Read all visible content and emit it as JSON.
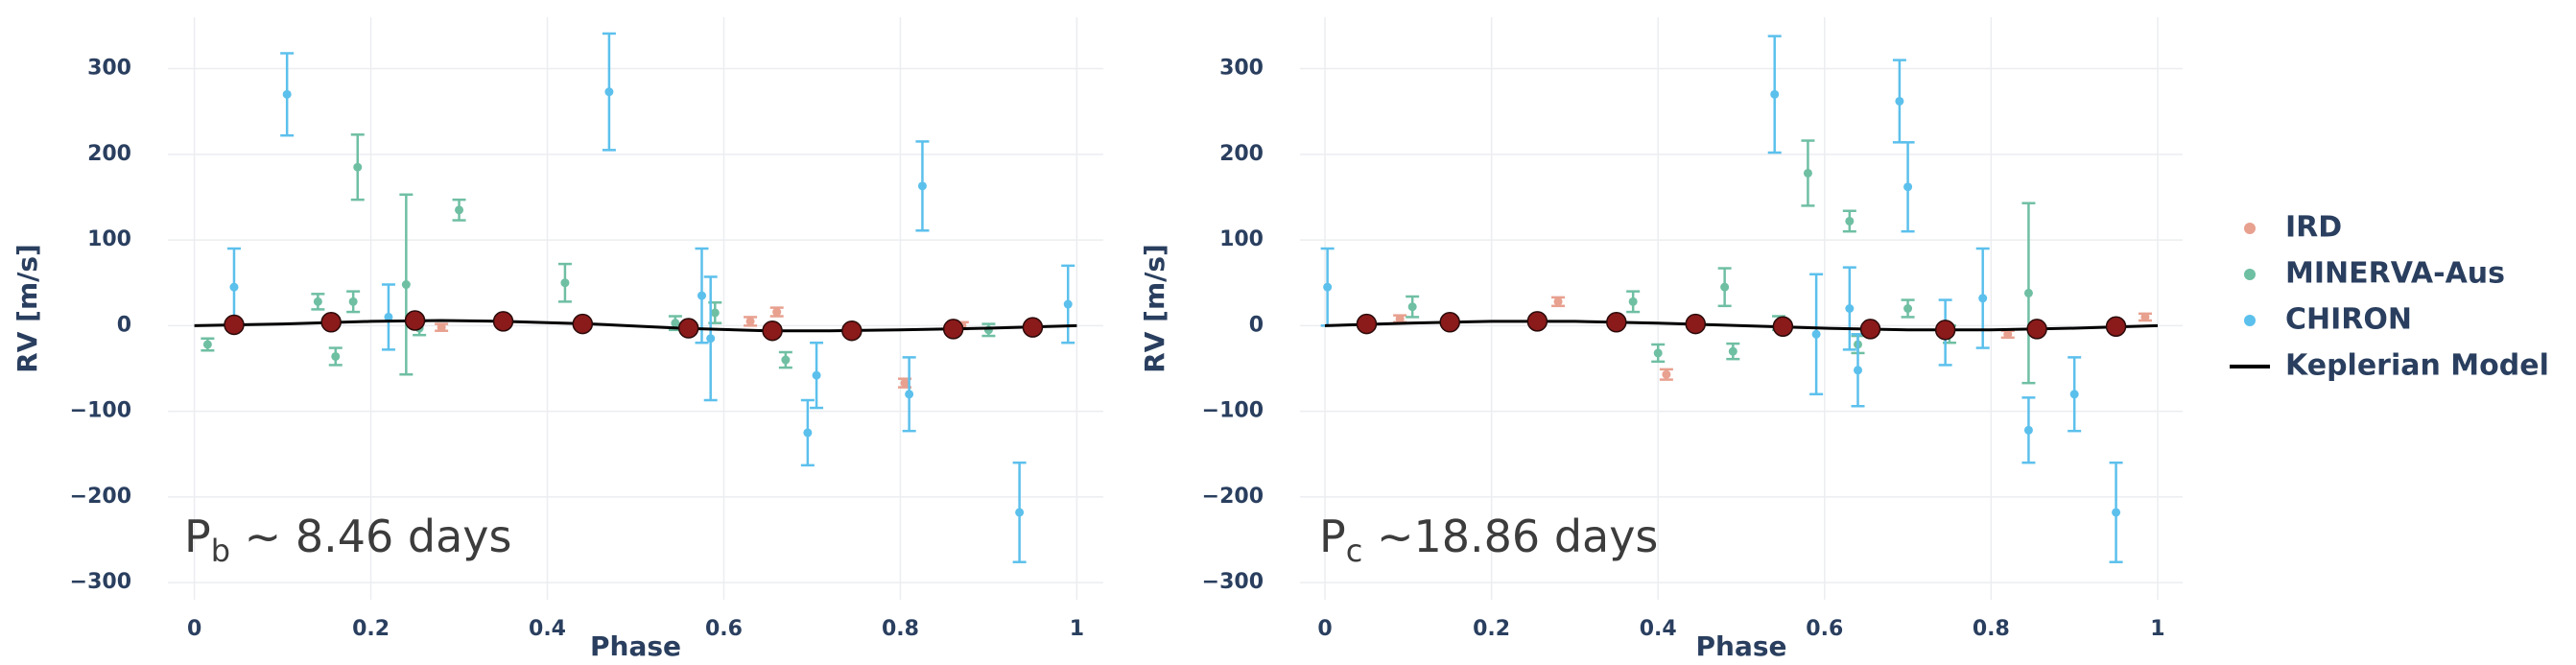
{
  "colors": {
    "IRD": "#e8a08f",
    "MINERVA-Aus": "#6fbfa3",
    "CHIRON": "#5cc0ec",
    "model_line": "#000000",
    "model_marker": "#8b1a1a",
    "grid": "#ebedf0",
    "text": "#2a3f5f"
  },
  "legend": {
    "items": [
      {
        "label": "IRD",
        "key": "IRD",
        "kind": "marker"
      },
      {
        "label": "MINERVA-Aus",
        "key": "MINERVA-Aus",
        "kind": "marker"
      },
      {
        "label": "CHIRON",
        "key": "CHIRON",
        "kind": "marker"
      },
      {
        "label": "Keplerian Model",
        "key": "model_line",
        "kind": "line"
      }
    ]
  },
  "chart_data": [
    {
      "type": "scatter",
      "panel": "b",
      "annotation": {
        "main": "P",
        "sub": "b",
        "rest": " ~ 8.46 days"
      },
      "xlabel": "Phase",
      "ylabel": "RV [m/s]",
      "xlim": [
        -0.03,
        1.03
      ],
      "ylim": [
        -320,
        360
      ],
      "xticks": [
        "0",
        "0.2",
        "0.4",
        "0.6",
        "0.8",
        "1"
      ],
      "xtick_values": [
        0,
        0.2,
        0.4,
        0.6,
        0.8,
        1
      ],
      "yticks": [
        "300",
        "200",
        "100",
        "0",
        "−100",
        "−200",
        "−300"
      ],
      "ytick_values": [
        300,
        200,
        100,
        0,
        -100,
        -200,
        -300
      ],
      "grid": true,
      "series": [
        {
          "name": "IRD",
          "points": [
            {
              "x": 0.28,
              "y": -2,
              "err": 4
            },
            {
              "x": 0.63,
              "y": 5,
              "err": 5
            },
            {
              "x": 0.66,
              "y": 16,
              "err": 5
            },
            {
              "x": 0.805,
              "y": -67,
              "err": 5
            },
            {
              "x": 0.87,
              "y": 0,
              "err": 4
            }
          ]
        },
        {
          "name": "MINERVA-Aus",
          "points": [
            {
              "x": 0.015,
              "y": -22,
              "err": 7
            },
            {
              "x": 0.14,
              "y": 28,
              "err": 9
            },
            {
              "x": 0.16,
              "y": -36,
              "err": 10
            },
            {
              "x": 0.18,
              "y": 28,
              "err": 12
            },
            {
              "x": 0.185,
              "y": 185,
              "err": 38
            },
            {
              "x": 0.24,
              "y": 48,
              "err": 105
            },
            {
              "x": 0.255,
              "y": -3,
              "err": 8
            },
            {
              "x": 0.3,
              "y": 135,
              "err": 12
            },
            {
              "x": 0.42,
              "y": 50,
              "err": 22
            },
            {
              "x": 0.545,
              "y": 3,
              "err": 8
            },
            {
              "x": 0.59,
              "y": 15,
              "err": 12
            },
            {
              "x": 0.67,
              "y": -40,
              "err": 9
            },
            {
              "x": 0.9,
              "y": -5,
              "err": 7
            }
          ]
        },
        {
          "name": "CHIRON",
          "points": [
            {
              "x": 0.045,
              "y": 45,
              "err": 45
            },
            {
              "x": 0.105,
              "y": 270,
              "err": 48
            },
            {
              "x": 0.22,
              "y": 10,
              "err": 38
            },
            {
              "x": 0.47,
              "y": 273,
              "err": 68
            },
            {
              "x": 0.575,
              "y": 35,
              "err": 55
            },
            {
              "x": 0.585,
              "y": -15,
              "err": 72
            },
            {
              "x": 0.695,
              "y": -125,
              "err": 38
            },
            {
              "x": 0.705,
              "y": -58,
              "err": 38
            },
            {
              "x": 0.81,
              "y": -80,
              "err": 43
            },
            {
              "x": 0.825,
              "y": 163,
              "err": 52
            },
            {
              "x": 0.935,
              "y": -218,
              "err": 58
            },
            {
              "x": 0.99,
              "y": 25,
              "err": 45
            }
          ]
        },
        {
          "name": "Keplerian Model",
          "line": [
            {
              "x": 0.0,
              "y": 0
            },
            {
              "x": 0.1,
              "y": 2
            },
            {
              "x": 0.2,
              "y": 5
            },
            {
              "x": 0.28,
              "y": 6
            },
            {
              "x": 0.35,
              "y": 5
            },
            {
              "x": 0.45,
              "y": 2
            },
            {
              "x": 0.55,
              "y": -3
            },
            {
              "x": 0.65,
              "y": -6
            },
            {
              "x": 0.72,
              "y": -6
            },
            {
              "x": 0.8,
              "y": -5
            },
            {
              "x": 0.9,
              "y": -3
            },
            {
              "x": 1.0,
              "y": 0
            }
          ],
          "markers": [
            {
              "x": 0.045,
              "y": 1
            },
            {
              "x": 0.155,
              "y": 4
            },
            {
              "x": 0.25,
              "y": 6
            },
            {
              "x": 0.35,
              "y": 5
            },
            {
              "x": 0.44,
              "y": 2
            },
            {
              "x": 0.56,
              "y": -3
            },
            {
              "x": 0.655,
              "y": -6
            },
            {
              "x": 0.745,
              "y": -6
            },
            {
              "x": 0.86,
              "y": -4
            },
            {
              "x": 0.95,
              "y": -2
            }
          ]
        }
      ]
    },
    {
      "type": "scatter",
      "panel": "c",
      "annotation": {
        "main": "P",
        "sub": "c",
        "rest": " ~18.86 days"
      },
      "xlabel": "Phase",
      "ylabel": "RV [m/s]",
      "xlim": [
        -0.03,
        1.03
      ],
      "ylim": [
        -320,
        360
      ],
      "xticks": [
        "0",
        "0.2",
        "0.4",
        "0.6",
        "0.8",
        "1"
      ],
      "xtick_values": [
        0,
        0.2,
        0.4,
        0.6,
        0.8,
        1
      ],
      "yticks": [
        "300",
        "200",
        "100",
        "0",
        "−100",
        "−200",
        "−300"
      ],
      "ytick_values": [
        300,
        200,
        100,
        0,
        -100,
        -200,
        -300
      ],
      "grid": true,
      "series": [
        {
          "name": "IRD",
          "points": [
            {
              "x": 0.09,
              "y": 8,
              "err": 4
            },
            {
              "x": 0.28,
              "y": 28,
              "err": 5
            },
            {
              "x": 0.41,
              "y": -57,
              "err": 6
            },
            {
              "x": 0.82,
              "y": -10,
              "err": 4
            },
            {
              "x": 0.985,
              "y": 10,
              "err": 4
            }
          ]
        },
        {
          "name": "MINERVA-Aus",
          "points": [
            {
              "x": 0.105,
              "y": 22,
              "err": 12
            },
            {
              "x": 0.37,
              "y": 28,
              "err": 12
            },
            {
              "x": 0.4,
              "y": -32,
              "err": 10
            },
            {
              "x": 0.48,
              "y": 45,
              "err": 22
            },
            {
              "x": 0.49,
              "y": -30,
              "err": 9
            },
            {
              "x": 0.545,
              "y": 3,
              "err": 8
            },
            {
              "x": 0.58,
              "y": 178,
              "err": 38
            },
            {
              "x": 0.63,
              "y": 122,
              "err": 12
            },
            {
              "x": 0.64,
              "y": -22,
              "err": 10
            },
            {
              "x": 0.7,
              "y": 20,
              "err": 10
            },
            {
              "x": 0.75,
              "y": -10,
              "err": 10
            },
            {
              "x": 0.845,
              "y": 38,
              "err": 105
            }
          ]
        },
        {
          "name": "CHIRON",
          "points": [
            {
              "x": 0.003,
              "y": 45,
              "err": 45
            },
            {
              "x": 0.54,
              "y": 270,
              "err": 68
            },
            {
              "x": 0.59,
              "y": -10,
              "err": 70
            },
            {
              "x": 0.63,
              "y": 20,
              "err": 48
            },
            {
              "x": 0.64,
              "y": -52,
              "err": 42
            },
            {
              "x": 0.69,
              "y": 262,
              "err": 48
            },
            {
              "x": 0.7,
              "y": 162,
              "err": 52
            },
            {
              "x": 0.745,
              "y": -8,
              "err": 38
            },
            {
              "x": 0.79,
              "y": 32,
              "err": 58
            },
            {
              "x": 0.845,
              "y": -122,
              "err": 38
            },
            {
              "x": 0.9,
              "y": -80,
              "err": 43
            },
            {
              "x": 0.95,
              "y": -218,
              "err": 58
            }
          ]
        },
        {
          "name": "Keplerian Model",
          "line": [
            {
              "x": 0.0,
              "y": 0
            },
            {
              "x": 0.1,
              "y": 3
            },
            {
              "x": 0.2,
              "y": 5
            },
            {
              "x": 0.3,
              "y": 5
            },
            {
              "x": 0.4,
              "y": 3
            },
            {
              "x": 0.5,
              "y": 0
            },
            {
              "x": 0.6,
              "y": -3
            },
            {
              "x": 0.7,
              "y": -5
            },
            {
              "x": 0.8,
              "y": -5
            },
            {
              "x": 0.9,
              "y": -3
            },
            {
              "x": 1.0,
              "y": 0
            }
          ],
          "markers": [
            {
              "x": 0.05,
              "y": 2
            },
            {
              "x": 0.15,
              "y": 4
            },
            {
              "x": 0.255,
              "y": 5
            },
            {
              "x": 0.35,
              "y": 4
            },
            {
              "x": 0.445,
              "y": 2
            },
            {
              "x": 0.55,
              "y": -1
            },
            {
              "x": 0.655,
              "y": -4
            },
            {
              "x": 0.745,
              "y": -5
            },
            {
              "x": 0.855,
              "y": -4
            },
            {
              "x": 0.95,
              "y": -1
            }
          ]
        }
      ]
    }
  ]
}
